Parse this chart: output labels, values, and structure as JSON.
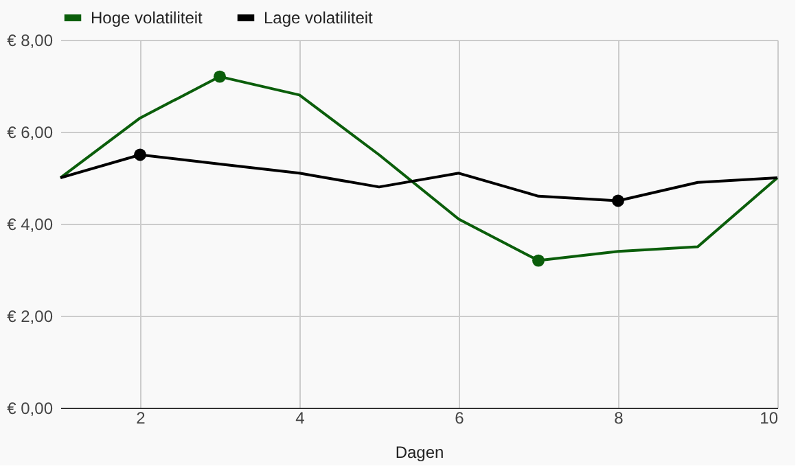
{
  "chart_data": {
    "type": "line",
    "xlabel": "Dagen",
    "x": [
      1,
      2,
      3,
      4,
      5,
      6,
      7,
      8,
      9,
      10
    ],
    "series": [
      {
        "name": "Hoge volatiliteit",
        "color": "#0b5e0b",
        "values": [
          5.0,
          6.3,
          7.2,
          6.8,
          5.5,
          4.1,
          3.2,
          3.4,
          3.5,
          5.0
        ]
      },
      {
        "name": "Lage volatiliteit",
        "color": "#000000",
        "values": [
          5.0,
          5.5,
          5.3,
          5.1,
          4.8,
          5.1,
          4.6,
          4.5,
          4.9,
          5.0
        ]
      },
      {
        "type": "scatter",
        "marker": "circle",
        "color": "#0b5e0b",
        "x": [
          3,
          7
        ],
        "values": [
          7.2,
          3.2
        ]
      },
      {
        "type": "scatter",
        "marker": "circle",
        "color": "#000000",
        "x": [
          2,
          8
        ],
        "values": [
          5.5,
          4.5
        ]
      }
    ],
    "xlim": [
      1,
      10
    ],
    "xticks": [
      2,
      4,
      6,
      8,
      10
    ],
    "ylim": [
      0,
      8
    ],
    "yticks": [
      {
        "value": 0,
        "label": "€ 0,00"
      },
      {
        "value": 2,
        "label": "€ 2,00"
      },
      {
        "value": 4,
        "label": "€ 4,00"
      },
      {
        "value": 6,
        "label": "€ 6,00"
      },
      {
        "value": 8,
        "label": "€ 8,00"
      }
    ],
    "grid": true,
    "legend": "top",
    "line_style": "solid"
  }
}
